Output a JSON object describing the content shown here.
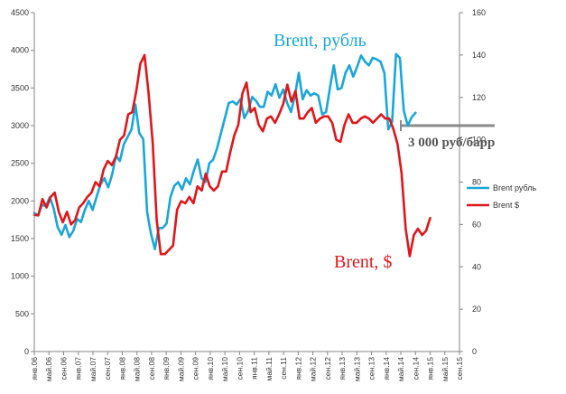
{
  "chart_data": {
    "type": "line",
    "x_labels": [
      "янв.06",
      "май.06",
      "сен.06",
      "янв.07",
      "май.07",
      "сен.07",
      "янв.08",
      "май.08",
      "сен.08",
      "янв.09",
      "май.09",
      "сен.09",
      "янв.10",
      "май.10",
      "сен.10",
      "янв.11",
      "май.11",
      "сен.11",
      "янв.12",
      "май.12",
      "сен.12",
      "янв.13",
      "май.13",
      "сен.13",
      "янв.14",
      "май.14",
      "сен.14",
      "янв.15",
      "май.15",
      "сен.15"
    ],
    "y_left": {
      "min": 0,
      "max": 4500,
      "step": 500,
      "ticks": [
        "0",
        "500",
        "1000",
        "1500",
        "2000",
        "2500",
        "3000",
        "3500",
        "4000",
        "4500"
      ]
    },
    "y_right": {
      "min": 0,
      "max": 160,
      "step": 20,
      "ticks": [
        "0",
        "20",
        "40",
        "60",
        "80",
        "100",
        "120",
        "140",
        "160"
      ]
    },
    "grid": false,
    "legend_position": "right",
    "series": [
      {
        "name": "Brent рубль",
        "axis": "left",
        "color": "#1aa6d8",
        "values": [
          1840,
          1810,
          1950,
          1930,
          2050,
          1900,
          1650,
          1550,
          1680,
          1520,
          1600,
          1760,
          1720,
          1880,
          2000,
          1880,
          2050,
          2220,
          2300,
          2180,
          2350,
          2600,
          2530,
          2750,
          2850,
          2950,
          3280,
          2900,
          2820,
          1850,
          1560,
          1360,
          1640,
          1640,
          1700,
          2050,
          2200,
          2250,
          2150,
          2300,
          2220,
          2400,
          2550,
          2300,
          2250,
          2500,
          2550,
          2700,
          2900,
          3100,
          3300,
          3320,
          3280,
          3350,
          3100,
          3200,
          3380,
          3330,
          3250,
          3250,
          3450,
          3400,
          3550,
          3370,
          3480,
          3300,
          3180,
          3400,
          3700,
          3350,
          3470,
          3400,
          3430,
          3400,
          3150,
          3180,
          3500,
          3800,
          3480,
          3500,
          3700,
          3800,
          3650,
          3780,
          3930,
          3850,
          3800,
          3900,
          3880,
          3850,
          3700,
          2950,
          3050,
          3950,
          3900,
          3200,
          3000,
          3110,
          3170
        ],
        "x_end": 3
      },
      {
        "name": "Brent $",
        "axis": "right",
        "color": "#e0161b",
        "values": [
          64.5,
          64.3,
          72,
          68,
          73,
          75,
          66,
          61,
          66,
          60,
          62,
          68,
          70,
          73,
          75,
          80,
          78,
          86,
          90,
          88,
          92,
          100,
          102,
          112,
          113,
          123,
          136,
          140,
          122,
          99,
          62,
          46,
          46,
          48,
          50,
          67,
          71,
          70,
          73,
          70,
          78,
          76,
          84,
          78,
          76,
          78,
          85,
          85,
          94,
          102,
          107,
          122,
          127,
          113,
          115,
          107,
          104,
          110,
          111,
          108,
          112,
          117,
          126,
          118,
          123,
          110,
          110,
          113,
          115,
          108,
          110,
          111,
          111,
          108,
          100,
          99,
          107,
          112,
          108,
          108,
          110,
          111,
          110,
          108,
          110,
          112,
          110,
          110,
          105,
          98,
          84,
          58,
          45,
          55,
          58,
          55,
          57,
          63
        ],
        "x_end": 2
      }
    ],
    "annotations": [
      {
        "text": "Brent, рубль",
        "color": "#1aa6d8"
      },
      {
        "text": "Brent, $",
        "color": "#e0161b"
      },
      {
        "text": "3 000 руб/барр",
        "color": "#555555",
        "level": 3000
      }
    ]
  }
}
